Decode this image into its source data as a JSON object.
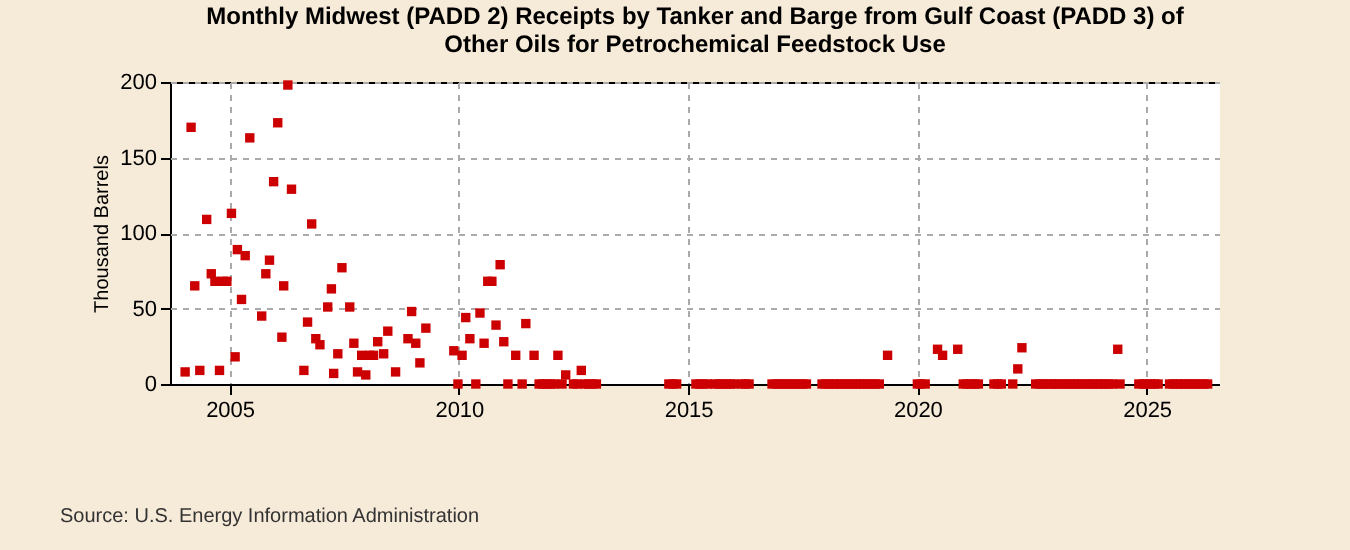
{
  "chart_data": {
    "type": "scatter",
    "title": "Monthly Midwest (PADD 2) Receipts by Tanker and Barge from Gulf Coast (PADD 3) of Other Oils for Petrochemical Feedstock Use",
    "ylabel": "Thousand Barrels",
    "annotations": [
      "Source: U.S. Energy Information Administration"
    ],
    "xlim": [
      2003.7,
      2026.6
    ],
    "xticks": [
      2005,
      2010,
      2015,
      2020,
      2025
    ],
    "ylim": [
      0,
      200
    ],
    "yticks": [
      0,
      50,
      100,
      150,
      200
    ],
    "grid": true,
    "marker": "square",
    "series": [
      {
        "color": "#cc0000",
        "x": [
          2004.03,
          2004.16,
          2004.24,
          2004.35,
          2004.5,
          2004.6,
          2004.68,
          2004.78,
          2004.86,
          2004.94,
          2005.04,
          2005.12,
          2005.17,
          2005.26,
          2005.34,
          2005.44,
          2005.7,
          2005.79,
          2005.87,
          2005.96,
          2006.05,
          2006.14,
          2006.18,
          2006.27,
          2006.35,
          2006.62,
          2006.7,
          2006.79,
          2006.88,
          2006.97,
          2007.14,
          2007.22,
          2007.27,
          2007.36,
          2007.45,
          2007.62,
          2007.71,
          2007.79,
          2007.88,
          2007.97,
          2008.05,
          2008.14,
          2008.23,
          2008.36,
          2008.45,
          2008.62,
          2008.89,
          2008.97,
          2009.06,
          2009.15,
          2009.28,
          2009.89,
          2009.98,
          2010.07,
          2010.15,
          2010.24,
          2010.37,
          2010.46,
          2010.55,
          2010.63,
          2010.72,
          2010.81,
          2010.9,
          2010.98,
          2011.07,
          2011.24,
          2011.38,
          2011.46,
          2011.64,
          2011.75,
          2011.83,
          2011.92,
          2012.0,
          2012.08,
          2012.16,
          2012.25,
          2012.33,
          2012.5,
          2012.58,
          2012.67,
          2012.75,
          2012.83,
          2012.92,
          2013.0,
          2014.58,
          2014.67,
          2014.75,
          2015.17,
          2015.25,
          2015.33,
          2015.42,
          2015.58,
          2015.67,
          2015.75,
          2015.83,
          2015.92,
          2016.0,
          2016.17,
          2016.25,
          2016.33,
          2016.83,
          2016.92,
          2017.0,
          2017.08,
          2017.17,
          2017.25,
          2017.33,
          2017.42,
          2017.5,
          2017.58,
          2017.92,
          2018.0,
          2018.08,
          2018.17,
          2018.25,
          2018.33,
          2018.42,
          2018.5,
          2018.58,
          2018.67,
          2018.75,
          2018.83,
          2018.92,
          2019.0,
          2019.08,
          2019.17,
          2019.35,
          2020.0,
          2020.08,
          2020.17,
          2020.44,
          2020.55,
          2020.88,
          2021.0,
          2021.08,
          2021.17,
          2021.25,
          2021.33,
          2021.67,
          2021.75,
          2021.83,
          2022.08,
          2022.19,
          2022.28,
          2022.58,
          2022.67,
          2022.75,
          2022.83,
          2022.92,
          2023.0,
          2023.08,
          2023.17,
          2023.25,
          2023.33,
          2023.42,
          2023.5,
          2023.58,
          2023.67,
          2023.75,
          2023.83,
          2023.92,
          2024.0,
          2024.08,
          2024.17,
          2024.25,
          2024.37,
          2024.42,
          2024.83,
          2024.92,
          2025.0,
          2025.08,
          2025.17,
          2025.25,
          2025.5,
          2025.58,
          2025.67,
          2025.75,
          2025.83,
          2025.92,
          2026.0,
          2026.08,
          2026.17,
          2026.25,
          2026.33
        ],
        "values": [
          8,
          170,
          65,
          9,
          109,
          73,
          68,
          9,
          68,
          68,
          113,
          18,
          89,
          56,
          85,
          163,
          45,
          73,
          82,
          134,
          173,
          31,
          65,
          198,
          129,
          9,
          41,
          106,
          30,
          26,
          51,
          63,
          7,
          20,
          77,
          51,
          27,
          8,
          19,
          6,
          19,
          19,
          28,
          20,
          35,
          8,
          30,
          48,
          27,
          14,
          37,
          22,
          0,
          19,
          44,
          30,
          0,
          47,
          27,
          68,
          68,
          39,
          79,
          28,
          0,
          19,
          0,
          40,
          19,
          0,
          0,
          0,
          0,
          0,
          19,
          0,
          6,
          0,
          0,
          9,
          0,
          0,
          0,
          0,
          0,
          0,
          0,
          0,
          0,
          0,
          0,
          0,
          0,
          0,
          0,
          0,
          0,
          0,
          0,
          0,
          0,
          0,
          0,
          0,
          0,
          0,
          0,
          0,
          0,
          0,
          0,
          0,
          0,
          0,
          0,
          0,
          0,
          0,
          0,
          0,
          0,
          0,
          0,
          0,
          0,
          0,
          19,
          0,
          0,
          0,
          23,
          19,
          23,
          0,
          0,
          0,
          0,
          0,
          0,
          0,
          0,
          0,
          10,
          24,
          0,
          0,
          0,
          0,
          0,
          0,
          0,
          0,
          0,
          0,
          0,
          0,
          0,
          0,
          0,
          0,
          0,
          0,
          0,
          0,
          0,
          23,
          0,
          0,
          0,
          0,
          0,
          0,
          0,
          0,
          0,
          0,
          0,
          0,
          0,
          0,
          0,
          0,
          0,
          0
        ]
      }
    ]
  }
}
